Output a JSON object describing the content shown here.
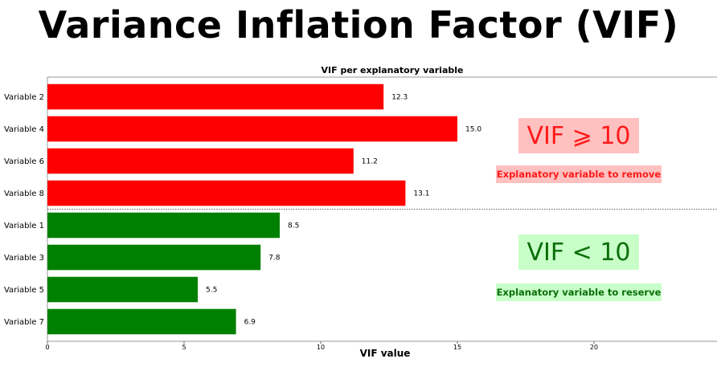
{
  "page_title": "Variance Inflation Factor (VIF)",
  "chart_data": {
    "type": "bar",
    "orientation": "horizontal",
    "title": "VIF per explanatory variable",
    "xlabel": "VIF value",
    "ylabel": "",
    "xlim": [
      0,
      24.5
    ],
    "xticks": [
      0,
      5,
      10,
      15,
      20
    ],
    "grid": false,
    "categories": [
      "Variable 2",
      "Variable 4",
      "Variable 6",
      "Variable 8",
      "Variable 1",
      "Variable 3",
      "Variable 5",
      "Variable 7"
    ],
    "values": [
      12.3,
      15.0,
      11.2,
      13.1,
      8.5,
      7.8,
      5.5,
      6.9
    ],
    "value_labels": [
      "12.3",
      "15.0",
      "11.2",
      "13.1",
      "8.5",
      "7.8",
      "5.5",
      "6.9"
    ],
    "bar_colors": [
      "#ff0000",
      "#ff0000",
      "#ff0000",
      "#ff0000",
      "#008000",
      "#008000",
      "#008000",
      "#008000"
    ],
    "threshold": 10,
    "annotations": {
      "high": {
        "label": "VIF ⩾ 10",
        "note": "Explanatory variable to remove",
        "text_color": "#ff1a1a",
        "bg_color": "#ffc0c0"
      },
      "low": {
        "label": "VIF < 10",
        "note": "Explanatory variable to reserve",
        "text_color": "#0a6e0a",
        "bg_color": "#c8ffc8"
      }
    }
  }
}
